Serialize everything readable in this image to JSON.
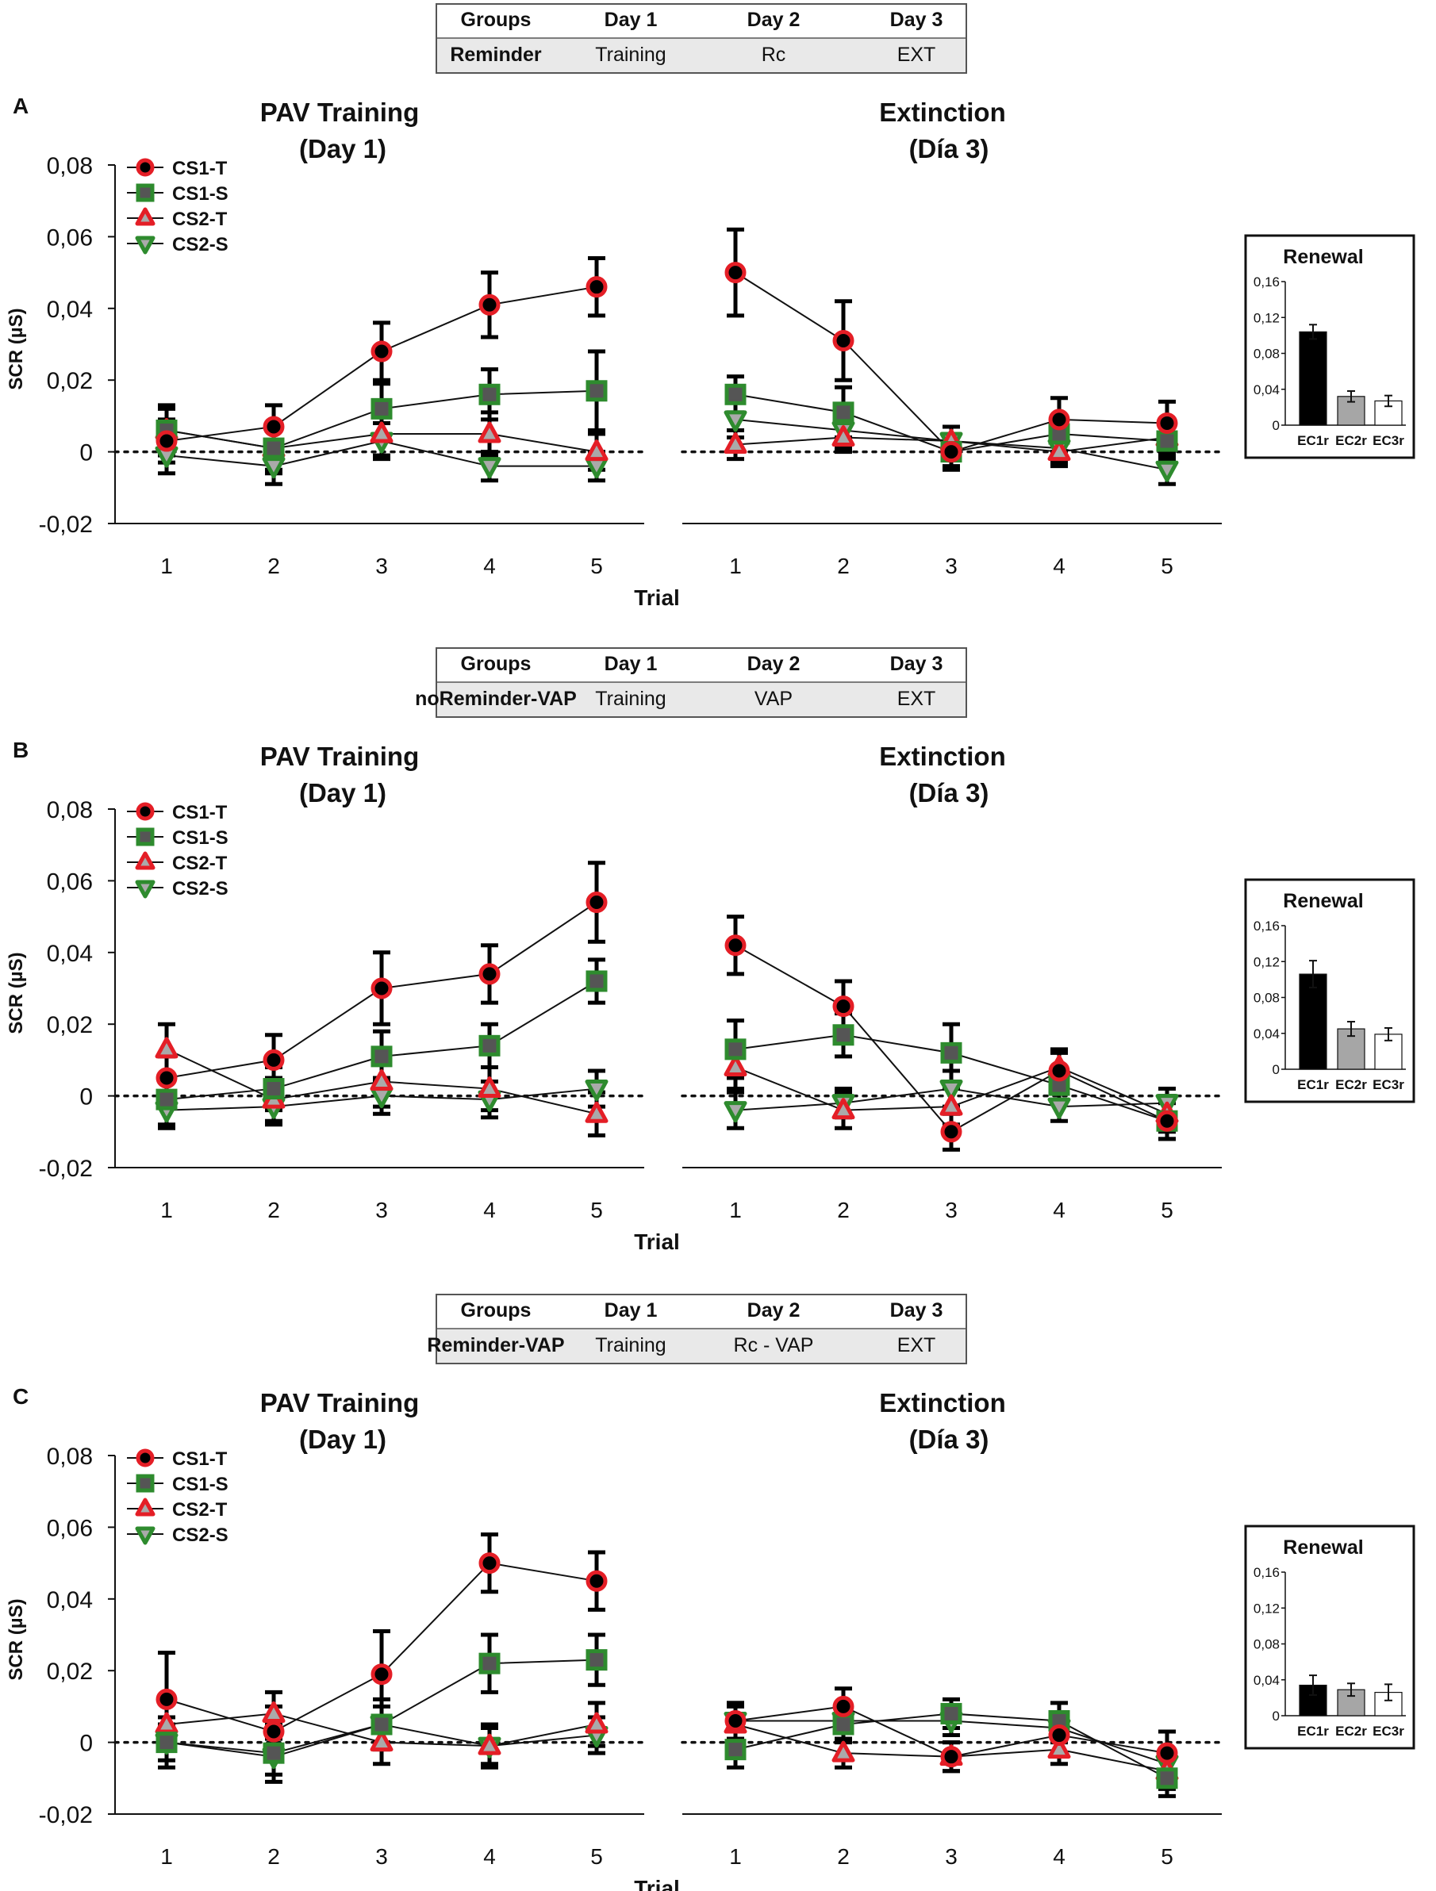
{
  "chart_data": {
    "type": "line",
    "title": "SCR across trials: PAV Training (Day 1) and Extinction (Día 3), with Renewal insets",
    "xlabel": "Trial",
    "ylabel": "SCR (µS)",
    "xcategories": [
      "1",
      "2",
      "3",
      "4",
      "5"
    ],
    "ylim": [
      -0.02,
      0.08
    ],
    "yticks": [
      -0.02,
      0,
      0.02,
      0.04,
      0.06,
      0.08
    ],
    "ytick_labels": [
      "-0,02",
      "0",
      "0,02",
      "0,04",
      "0,06",
      "0,08"
    ],
    "legend_location": "top-left",
    "legend": [
      {
        "name": "CS1-T",
        "marker": "circle",
        "color": "#e41e26",
        "fill": "#000000"
      },
      {
        "name": "CS1-S",
        "marker": "square",
        "color": "#2e8b2e",
        "fill": "#555555"
      },
      {
        "name": "CS2-T",
        "marker": "triangle-up",
        "color": "#e41e26",
        "fill": "#aaaaaa"
      },
      {
        "name": "CS2-S",
        "marker": "triangle-down",
        "color": "#2e8b2e",
        "fill": "#aaaaaa"
      }
    ],
    "renewal_ylim": [
      0,
      0.16
    ],
    "renewal_ticks": [
      "0",
      "0,04",
      "0,08",
      "0,12",
      "0,16"
    ],
    "renewal_title": "Renewal",
    "renewal_categories": [
      "EC1r",
      "EC2r",
      "EC3r"
    ],
    "renewal_colors": [
      "#000000",
      "#a6a6a6",
      "#ffffff"
    ],
    "panels": [
      {
        "label": "A",
        "table": {
          "headers": [
            "Groups",
            "Day 1",
            "Day 2",
            "Day 3"
          ],
          "row": [
            "Reminder",
            "Training",
            "Rc",
            "EXT"
          ]
        },
        "left": {
          "title": [
            "PAV Training",
            "(Day 1)"
          ],
          "series": [
            {
              "name": "CS1-T",
              "values": [
                0.003,
                0.007,
                0.028,
                0.041,
                0.046
              ],
              "err": [
                0.006,
                0.006,
                0.008,
                0.009,
                0.008
              ]
            },
            {
              "name": "CS1-S",
              "values": [
                0.006,
                0.001,
                0.012,
                0.016,
                0.017
              ],
              "err": [
                0.007,
                0.006,
                0.007,
                0.007,
                0.011
              ]
            },
            {
              "name": "CS2-T",
              "values": [
                0.006,
                0.001,
                0.005,
                0.005,
                0.0
              ],
              "err": [
                0.006,
                0.007,
                0.006,
                0.006,
                0.005
              ]
            },
            {
              "name": "CS2-S",
              "values": [
                -0.001,
                -0.004,
                0.003,
                -0.004,
                -0.004
              ],
              "err": [
                0.005,
                0.005,
                0.005,
                0.004,
                0.004
              ]
            }
          ]
        },
        "right": {
          "title": [
            "Extinction",
            "(Día 3)"
          ],
          "series": [
            {
              "name": "CS1-T",
              "values": [
                0.05,
                0.031,
                0.0,
                0.009,
                0.008
              ],
              "err": [
                0.012,
                0.011,
                0.004,
                0.006,
                0.006
              ]
            },
            {
              "name": "CS1-S",
              "values": [
                0.016,
                0.011,
                0.0,
                0.005,
                0.003
              ],
              "err": [
                0.005,
                0.007,
                0.005,
                0.005,
                0.005
              ]
            },
            {
              "name": "CS2-T",
              "values": [
                0.002,
                0.004,
                0.003,
                0.0,
                0.004
              ],
              "err": [
                0.004,
                0.004,
                0.004,
                0.004,
                0.004
              ]
            },
            {
              "name": "CS2-S",
              "values": [
                0.009,
                0.006,
                0.003,
                0.001,
                -0.005
              ],
              "err": [
                0.005,
                0.005,
                0.004,
                0.004,
                0.004
              ]
            }
          ]
        },
        "renewal": {
          "values": [
            0.104,
            0.032,
            0.027
          ],
          "err": [
            0.008,
            0.006,
            0.006
          ]
        }
      },
      {
        "label": "B",
        "table": {
          "headers": [
            "Groups",
            "Day 1",
            "Day 2",
            "Day 3"
          ],
          "row": [
            "noReminder-VAP",
            "Training",
            "VAP",
            "EXT"
          ]
        },
        "left": {
          "title": [
            "PAV Training",
            "(Day 1)"
          ],
          "series": [
            {
              "name": "CS1-T",
              "values": [
                0.005,
                0.01,
                0.03,
                0.034,
                0.054
              ],
              "err": [
                0.006,
                0.007,
                0.01,
                0.008,
                0.011
              ]
            },
            {
              "name": "CS1-S",
              "values": [
                -0.001,
                0.002,
                0.011,
                0.014,
                0.032
              ],
              "err": [
                0.007,
                0.006,
                0.007,
                0.006,
                0.006
              ]
            },
            {
              "name": "CS2-T",
              "values": [
                0.013,
                -0.001,
                0.004,
                0.002,
                -0.005
              ],
              "err": [
                0.007,
                0.006,
                0.007,
                0.006,
                0.006
              ]
            },
            {
              "name": "CS2-S",
              "values": [
                -0.004,
                -0.003,
                0.0,
                -0.001,
                0.002
              ],
              "err": [
                0.005,
                0.005,
                0.005,
                0.005,
                0.005
              ]
            }
          ]
        },
        "right": {
          "title": [
            "Extinction",
            "(Día 3)"
          ],
          "series": [
            {
              "name": "CS1-T",
              "values": [
                0.042,
                0.025,
                -0.01,
                0.007,
                -0.007
              ],
              "err": [
                0.008,
                0.007,
                0.005,
                0.005,
                0.005
              ]
            },
            {
              "name": "CS1-S",
              "values": [
                0.013,
                0.017,
                0.012,
                0.003,
                -0.007
              ],
              "err": [
                0.008,
                0.006,
                0.008,
                0.005,
                0.005
              ]
            },
            {
              "name": "CS2-T",
              "values": [
                0.008,
                -0.004,
                -0.003,
                0.008,
                -0.005
              ],
              "err": [
                0.006,
                0.005,
                0.005,
                0.005,
                0.005
              ]
            },
            {
              "name": "CS2-S",
              "values": [
                -0.004,
                -0.002,
                0.002,
                -0.003,
                -0.002
              ],
              "err": [
                0.005,
                0.004,
                0.005,
                0.004,
                0.004
              ]
            }
          ]
        },
        "renewal": {
          "values": [
            0.106,
            0.045,
            0.039
          ],
          "err": [
            0.015,
            0.008,
            0.007
          ]
        }
      },
      {
        "label": "C",
        "table": {
          "headers": [
            "Groups",
            "Day 1",
            "Day 2",
            "Day 3"
          ],
          "row": [
            "Reminder-VAP",
            "Training",
            "Rc - VAP",
            "EXT"
          ]
        },
        "left": {
          "title": [
            "PAV Training",
            "(Day 1)"
          ],
          "series": [
            {
              "name": "CS1-T",
              "values": [
                0.012,
                0.003,
                0.019,
                0.05,
                0.045
              ],
              "err": [
                0.013,
                0.007,
                0.012,
                0.008,
                0.008
              ]
            },
            {
              "name": "CS1-S",
              "values": [
                0.0,
                -0.003,
                0.005,
                0.022,
                0.023
              ],
              "err": [
                0.007,
                0.008,
                0.007,
                0.008,
                0.007
              ]
            },
            {
              "name": "CS2-T",
              "values": [
                0.005,
                0.008,
                0.0,
                -0.001,
                0.005
              ],
              "err": [
                0.007,
                0.006,
                0.006,
                0.006,
                0.006
              ]
            },
            {
              "name": "CS2-S",
              "values": [
                0.0,
                -0.004,
                0.005,
                -0.001,
                0.002
              ],
              "err": [
                0.005,
                0.005,
                0.005,
                0.005,
                0.005
              ]
            }
          ]
        },
        "right": {
          "title": [
            "Extinction",
            "(Día 3)"
          ],
          "series": [
            {
              "name": "CS1-T",
              "values": [
                0.006,
                0.01,
                -0.004,
                0.002,
                -0.003
              ],
              "err": [
                0.005,
                0.005,
                0.004,
                0.005,
                0.006
              ]
            },
            {
              "name": "CS1-S",
              "values": [
                -0.002,
                0.005,
                0.008,
                0.006,
                -0.01
              ],
              "err": [
                0.005,
                0.005,
                0.004,
                0.005,
                0.005
              ]
            },
            {
              "name": "CS2-T",
              "values": [
                0.005,
                -0.003,
                -0.004,
                -0.002,
                -0.008
              ],
              "err": [
                0.005,
                0.004,
                0.004,
                0.004,
                0.005
              ]
            },
            {
              "name": "CS2-S",
              "values": [
                0.006,
                0.006,
                0.006,
                0.004,
                -0.006
              ],
              "err": [
                0.005,
                0.005,
                0.004,
                0.004,
                0.004
              ]
            }
          ]
        },
        "renewal": {
          "values": [
            0.034,
            0.029,
            0.026
          ],
          "err": [
            0.011,
            0.007,
            0.009
          ]
        }
      }
    ]
  }
}
